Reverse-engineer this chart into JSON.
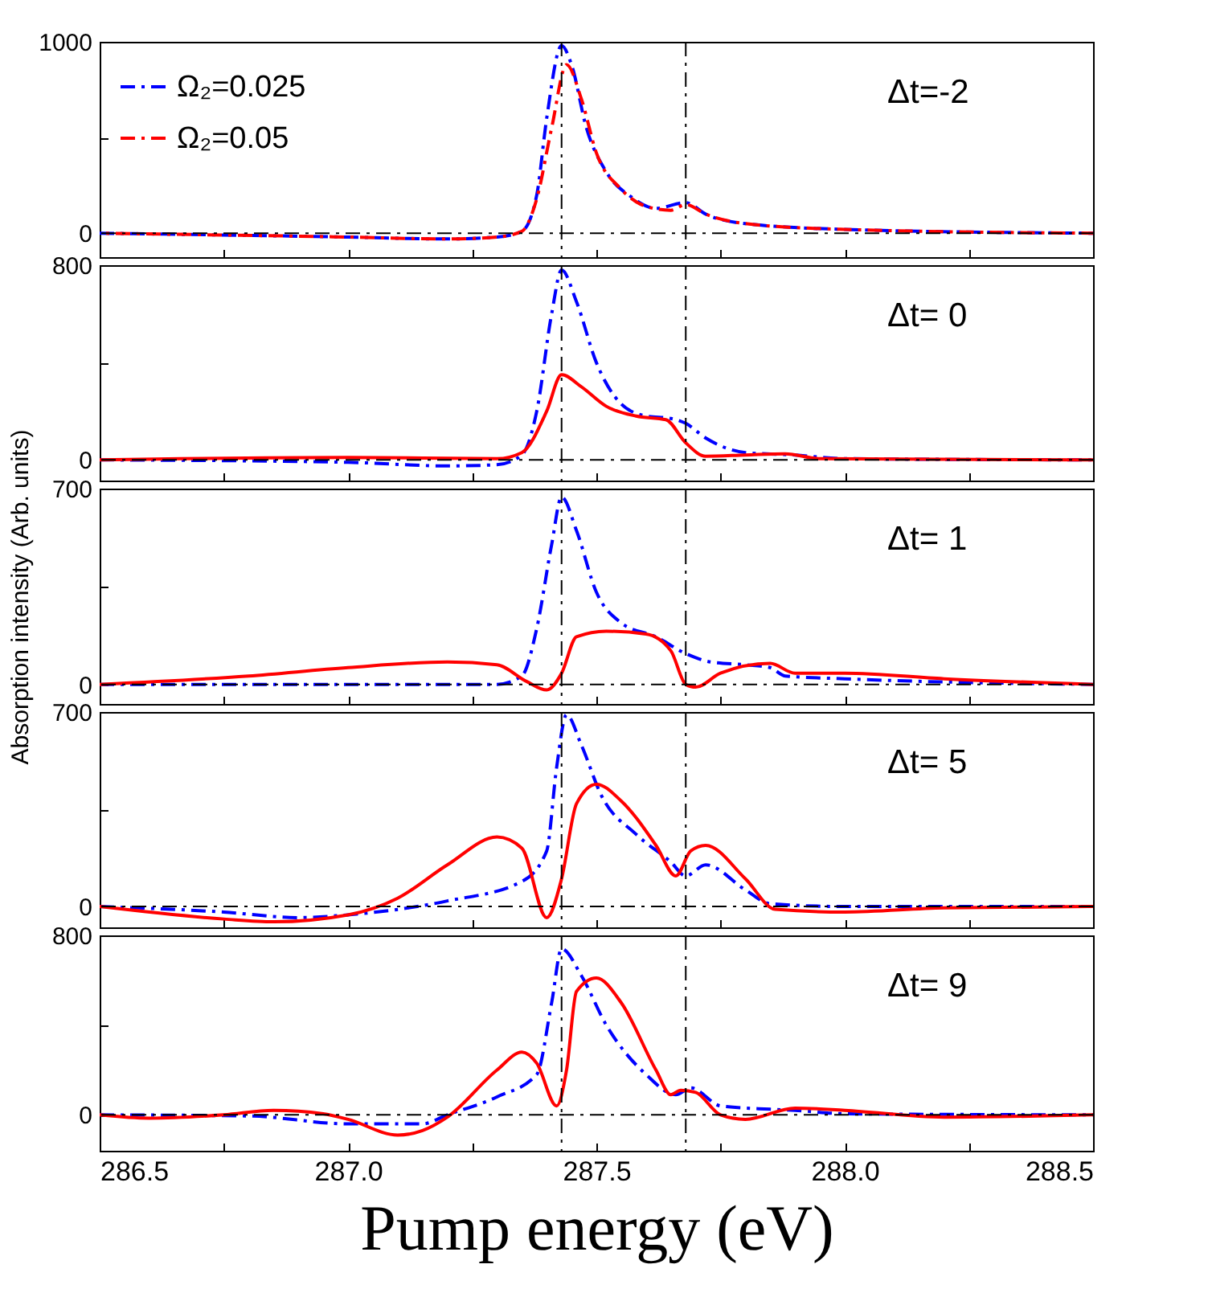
{
  "chart_data": [
    {
      "type": "line",
      "xlim": [
        286.5,
        288.5
      ],
      "xticks": [
        286.5,
        286.75,
        287,
        287.25,
        287.5,
        287.75,
        288,
        288.25,
        288.5
      ],
      "ylim": [
        -125,
        1000
      ],
      "yticks": [
        0,
        {
          "value": 500,
          "label": null
        },
        1000
      ],
      "tick_labels": "y",
      "legend": "top left",
      "annotations": [
        "Δt=-2"
      ],
      "ref_lines": [
        {
          "axis": "x",
          "value": 287.43,
          "line_style": "dashed",
          "color": "#000000"
        },
        {
          "axis": "x",
          "value": 287.68,
          "line_style": "dashed",
          "color": "#000000"
        },
        {
          "axis": "y",
          "value": 0,
          "line_style": "dashed",
          "color": "#000000"
        }
      ],
      "series": [
        {
          "name": "Ω₂=0.025",
          "color": "#0000ff",
          "line_style": "dashed",
          "x": [
            286.5,
            287.0,
            287.2,
            287.3,
            287.35,
            287.38,
            287.4,
            287.43,
            287.45,
            287.48,
            287.52,
            287.57,
            287.62,
            287.68,
            287.72,
            287.8,
            288.0,
            288.5
          ],
          "values": [
            0,
            -20,
            -30,
            -20,
            10,
            200,
            600,
            980,
            880,
            550,
            320,
            190,
            130,
            160,
            100,
            50,
            20,
            0
          ]
        },
        {
          "name": "Ω₂=0.05",
          "color": "#ff0000",
          "line_style": "dashed",
          "x": [
            286.5,
            287.0,
            287.2,
            287.3,
            287.35,
            287.38,
            287.41,
            287.44,
            287.47,
            287.5,
            287.55,
            287.6,
            287.65,
            287.68,
            287.72,
            287.8,
            288.0,
            288.5
          ],
          "values": [
            0,
            -20,
            -30,
            -20,
            10,
            180,
            550,
            880,
            700,
            420,
            230,
            140,
            120,
            150,
            100,
            50,
            20,
            0
          ]
        }
      ]
    },
    {
      "type": "line",
      "xlim": [
        286.5,
        288.5
      ],
      "xticks": [
        286.5,
        286.75,
        287,
        287.25,
        287.5,
        287.75,
        288,
        288.25,
        288.5
      ],
      "ylim": [
        -85,
        800
      ],
      "yticks": [
        0,
        {
          "value": 400,
          "label": null
        },
        800
      ],
      "tick_labels": "y",
      "annotations": [
        "Δt= 0"
      ],
      "ref_lines": [
        {
          "axis": "x",
          "value": 287.43,
          "line_style": "dashed",
          "color": "#000000"
        },
        {
          "axis": "x",
          "value": 287.68,
          "line_style": "dashed",
          "color": "#000000"
        },
        {
          "axis": "y",
          "value": 0,
          "line_style": "dashed",
          "color": "#000000"
        }
      ],
      "series": [
        {
          "color": "#0000ff",
          "line_style": "dashed",
          "x": [
            286.5,
            287.0,
            287.2,
            287.3,
            287.35,
            287.38,
            287.41,
            287.43,
            287.46,
            287.5,
            287.55,
            287.6,
            287.65,
            287.68,
            287.72,
            287.8,
            287.9,
            288.0,
            288.5
          ],
          "values": [
            0,
            -10,
            -25,
            -20,
            20,
            200,
            600,
            780,
            650,
            400,
            230,
            180,
            170,
            150,
            90,
            30,
            20,
            5,
            0
          ]
        },
        {
          "color": "#ff0000",
          "line_style": "solid",
          "x": [
            286.5,
            287.0,
            287.3,
            287.35,
            287.4,
            287.43,
            287.47,
            287.52,
            287.58,
            287.64,
            287.68,
            287.72,
            287.8,
            287.88,
            287.95,
            288.5
          ],
          "values": [
            0,
            10,
            5,
            30,
            200,
            350,
            300,
            220,
            180,
            165,
            70,
            15,
            20,
            25,
            5,
            0
          ]
        }
      ]
    },
    {
      "type": "line",
      "xlim": [
        286.5,
        288.5
      ],
      "xticks": [
        286.5,
        286.75,
        287,
        287.25,
        287.5,
        287.75,
        288,
        288.25,
        288.5
      ],
      "ylim": [
        -70,
        700
      ],
      "yticks": [
        0,
        {
          "value": 350,
          "label": null
        },
        700
      ],
      "tick_labels": "y",
      "ylabel": "Absorption intensity (Arb. units)",
      "annotations": [
        "Δt= 1"
      ],
      "ref_lines": [
        {
          "axis": "x",
          "value": 287.43,
          "line_style": "dashed",
          "color": "#000000"
        },
        {
          "axis": "x",
          "value": 287.68,
          "line_style": "dashed",
          "color": "#000000"
        },
        {
          "axis": "y",
          "value": 0,
          "line_style": "dashed",
          "color": "#000000"
        }
      ],
      "series": [
        {
          "color": "#0000ff",
          "line_style": "dashed",
          "x": [
            286.5,
            287.0,
            287.3,
            287.35,
            287.38,
            287.41,
            287.43,
            287.46,
            287.5,
            287.55,
            287.62,
            287.68,
            287.73,
            287.8,
            287.85,
            287.88,
            288.0,
            288.5
          ],
          "values": [
            0,
            0,
            0,
            30,
            200,
            500,
            670,
            550,
            330,
            220,
            170,
            110,
            80,
            70,
            60,
            30,
            20,
            0
          ]
        },
        {
          "color": "#ff0000",
          "line_style": "solid",
          "x": [
            286.5,
            286.8,
            287.0,
            287.2,
            287.3,
            287.36,
            287.4,
            287.43,
            287.46,
            287.52,
            287.6,
            287.65,
            287.68,
            287.7,
            287.75,
            287.85,
            287.9,
            288.0,
            288.2,
            288.5
          ],
          "values": [
            0,
            30,
            60,
            80,
            70,
            10,
            -20,
            40,
            170,
            190,
            180,
            120,
            0,
            -10,
            40,
            75,
            40,
            40,
            20,
            0
          ]
        }
      ]
    },
    {
      "type": "line",
      "xlim": [
        286.5,
        288.5
      ],
      "xticks": [
        286.5,
        286.75,
        287,
        287.25,
        287.5,
        287.75,
        288,
        288.25,
        288.5
      ],
      "ylim": [
        -75,
        700
      ],
      "yticks": [
        0,
        {
          "value": 350,
          "label": null
        },
        700
      ],
      "tick_labels": "y",
      "annotations": [
        "Δt= 5"
      ],
      "ref_lines": [
        {
          "axis": "x",
          "value": 287.43,
          "line_style": "dashed",
          "color": "#000000"
        },
        {
          "axis": "x",
          "value": 287.68,
          "line_style": "dashed",
          "color": "#000000"
        },
        {
          "axis": "y",
          "value": 0,
          "line_style": "dashed",
          "color": "#000000"
        }
      ],
      "series": [
        {
          "color": "#0000ff",
          "line_style": "dashed",
          "x": [
            286.5,
            286.75,
            286.9,
            287.0,
            287.2,
            287.35,
            287.4,
            287.42,
            287.44,
            287.47,
            287.51,
            287.58,
            287.65,
            287.68,
            287.72,
            287.8,
            287.85,
            288.0,
            288.5
          ],
          "values": [
            0,
            -20,
            -40,
            -30,
            20,
            90,
            200,
            500,
            690,
            580,
            400,
            260,
            160,
            110,
            150,
            60,
            10,
            0,
            0
          ]
        },
        {
          "color": "#ff0000",
          "line_style": "solid",
          "x": [
            286.5,
            286.75,
            286.85,
            287.0,
            287.1,
            287.2,
            287.3,
            287.35,
            287.4,
            287.43,
            287.46,
            287.5,
            287.55,
            287.62,
            287.66,
            287.69,
            287.72,
            287.8,
            287.86,
            288.0,
            288.2,
            288.5
          ],
          "values": [
            0,
            -45,
            -55,
            -30,
            30,
            150,
            250,
            210,
            -40,
            100,
            370,
            440,
            380,
            220,
            110,
            200,
            220,
            100,
            -10,
            -20,
            -5,
            0
          ]
        }
      ]
    },
    {
      "type": "line",
      "xlim": [
        286.5,
        288.5
      ],
      "xticks": [
        286.5,
        {
          "value": 286.75,
          "label": null
        },
        {
          "value": 287,
          "label": "287.0"
        },
        {
          "value": 287.25,
          "label": null
        },
        287.5,
        {
          "value": 287.75,
          "label": null
        },
        {
          "value": 288,
          "label": "288.0"
        },
        {
          "value": 288.25,
          "label": null
        },
        288.5
      ],
      "ylim": [
        -160,
        800
      ],
      "yticks": [
        0,
        {
          "value": 400,
          "label": null
        },
        800
      ],
      "xlabel": "Pump energy (eV)",
      "annotations": [
        "Δt= 9"
      ],
      "ref_lines": [
        {
          "axis": "x",
          "value": 287.43,
          "line_style": "dashed",
          "color": "#000000"
        },
        {
          "axis": "x",
          "value": 287.68,
          "line_style": "dashed",
          "color": "#000000"
        },
        {
          "axis": "y",
          "value": 0,
          "line_style": "dashed",
          "color": "#000000"
        }
      ],
      "series": [
        {
          "color": "#0000ff",
          "line_style": "dashed",
          "x": [
            286.5,
            286.8,
            287.0,
            287.15,
            287.2,
            287.3,
            287.38,
            287.41,
            287.43,
            287.47,
            287.52,
            287.6,
            287.66,
            287.69,
            287.75,
            287.85,
            287.9,
            288.0,
            288.5
          ],
          "values": [
            0,
            -5,
            -40,
            -40,
            0,
            80,
            180,
            500,
            740,
            620,
            400,
            180,
            90,
            120,
            40,
            25,
            20,
            5,
            0
          ]
        },
        {
          "color": "#ff0000",
          "line_style": "solid",
          "x": [
            286.5,
            286.6,
            286.75,
            286.85,
            286.95,
            287.0,
            287.1,
            287.15,
            287.2,
            287.3,
            287.35,
            287.38,
            287.42,
            287.44,
            287.46,
            287.5,
            287.55,
            287.62,
            287.65,
            287.67,
            287.7,
            287.75,
            287.8,
            287.9,
            288.0,
            288.2,
            288.5
          ],
          "values": [
            0,
            -15,
            0,
            20,
            5,
            -20,
            -90,
            -70,
            -10,
            200,
            280,
            230,
            40,
            200,
            550,
            610,
            500,
            200,
            90,
            110,
            100,
            0,
            -20,
            30,
            20,
            -10,
            0
          ]
        }
      ]
    }
  ]
}
